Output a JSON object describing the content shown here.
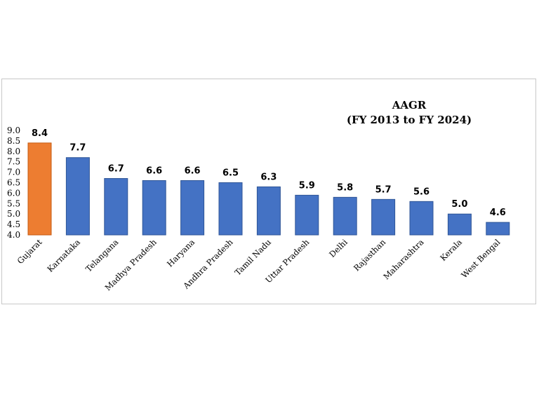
{
  "chart_data": {
    "type": "bar",
    "title": "AAGR",
    "subtitle": "(FY 2013 to FY 2024)",
    "categories": [
      "Gujarat",
      "Karnataka",
      "Telangana",
      "Madhya Pradesh",
      "Haryana",
      "Andhra Pradesh",
      "Tamil Nadu",
      "Uttar Pradesh",
      "Delhi",
      "Rajasthan",
      "Maharashtra",
      "Kerala",
      "West Bengal"
    ],
    "values": [
      8.4,
      7.7,
      6.7,
      6.6,
      6.6,
      6.5,
      6.3,
      5.9,
      5.8,
      5.7,
      5.6,
      5.0,
      4.6
    ],
    "value_labels": [
      "8.4",
      "7.7",
      "6.7",
      "6.6",
      "6.6",
      "6.5",
      "6.3",
      "5.9",
      "5.8",
      "5.7",
      "5.6",
      "5.0",
      "4.6"
    ],
    "y_ticks": [
      "4.0",
      "4.5",
      "5.0",
      "5.5",
      "6.0",
      "6.5",
      "7.0",
      "7.5",
      "8.0",
      "8.5",
      "9.0"
    ],
    "ylim": [
      4.0,
      9.0
    ],
    "xlabel": "",
    "ylabel": "",
    "grid": false,
    "colors": {
      "highlight": "#ED7D31",
      "bar": "#4472C4",
      "highlight_border": "#C55A11",
      "bar_border": "#2F5597"
    },
    "highlight_category": "Gujarat"
  }
}
